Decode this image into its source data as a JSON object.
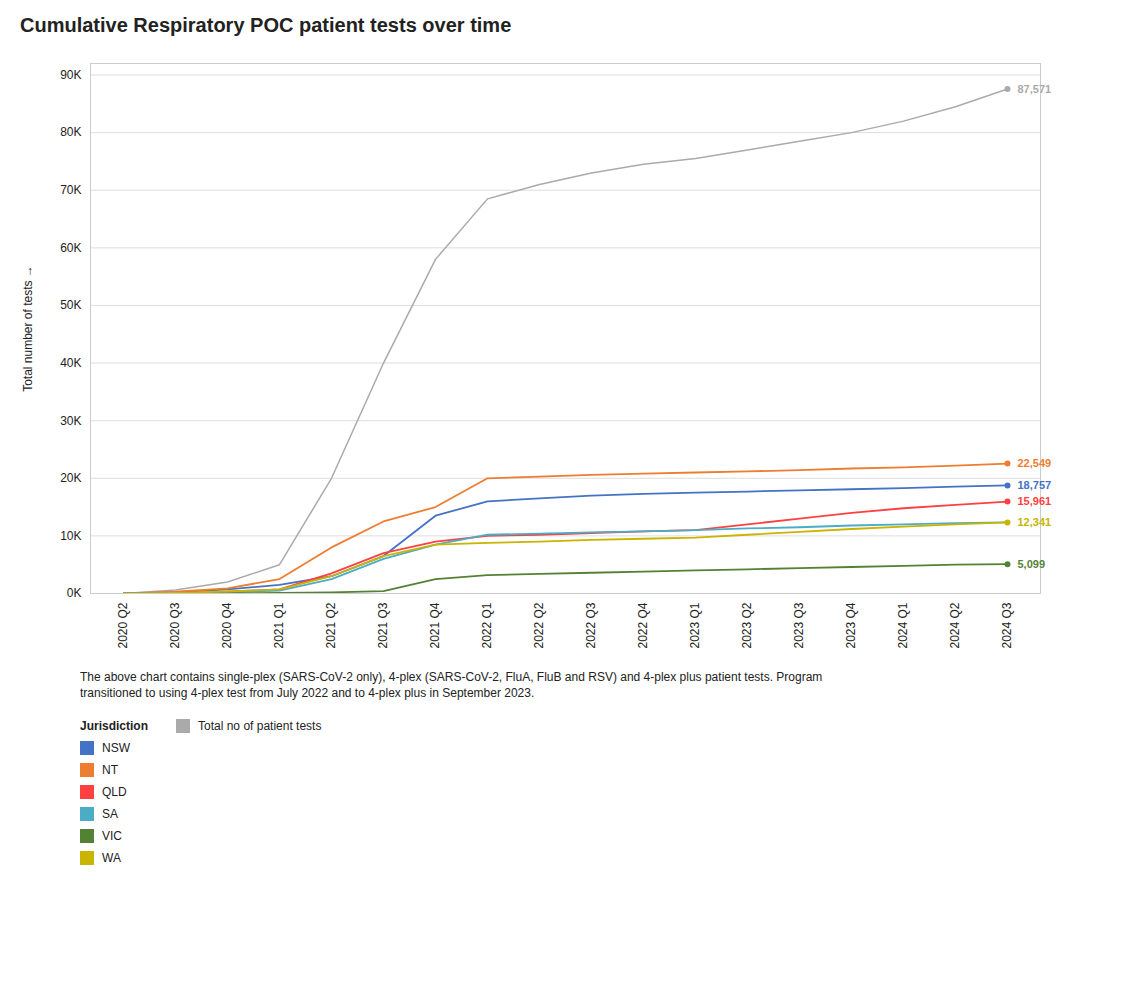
{
  "chart_data": {
    "type": "line",
    "title": "Cumulative Respiratory POC patient tests over time",
    "ylabel": "Total number of tests",
    "categories": [
      "2020 Q2",
      "2020 Q3",
      "2020 Q4",
      "2021 Q1",
      "2021 Q2",
      "2021 Q3",
      "2021 Q4",
      "2022 Q1",
      "2022 Q2",
      "2022 Q3",
      "2022 Q4",
      "2023 Q1",
      "2023 Q2",
      "2023 Q3",
      "2023 Q4",
      "2024 Q1",
      "2024 Q2",
      "2024 Q3"
    ],
    "series": [
      {
        "name": "Total no of patient tests",
        "color": "#AAAAAA",
        "values": [
          0,
          600,
          2000,
          5000,
          20000,
          40000,
          58000,
          68500,
          71000,
          73000,
          74500,
          75500,
          77000,
          78500,
          80000,
          82000,
          84500,
          87571
        ]
      },
      {
        "name": "NSW",
        "color": "#4472C4",
        "values": [
          0,
          200,
          700,
          1500,
          3000,
          6500,
          13500,
          16000,
          16500,
          17000,
          17300,
          17500,
          17700,
          17900,
          18100,
          18300,
          18550,
          18757
        ]
      },
      {
        "name": "NT",
        "color": "#ED7D31",
        "values": [
          0,
          300,
          900,
          2500,
          8000,
          12500,
          15000,
          20000,
          20300,
          20600,
          20800,
          21000,
          21200,
          21400,
          21700,
          21900,
          22200,
          22549
        ]
      },
      {
        "name": "QLD",
        "color": "#FF4040",
        "values": [
          0,
          100,
          300,
          700,
          3500,
          7000,
          9000,
          10000,
          10200,
          10500,
          10800,
          11000,
          12000,
          13000,
          14000,
          14800,
          15400,
          15961
        ]
      },
      {
        "name": "SA",
        "color": "#4BACC6",
        "values": [
          0,
          50,
          200,
          500,
          2500,
          6000,
          8500,
          10200,
          10400,
          10600,
          10800,
          11000,
          11300,
          11500,
          11800,
          12000,
          12200,
          12341
        ]
      },
      {
        "name": "VIC",
        "color": "#548235",
        "values": [
          0,
          0,
          50,
          100,
          200,
          400,
          2500,
          3200,
          3400,
          3600,
          3800,
          4000,
          4200,
          4400,
          4600,
          4800,
          5000,
          5099
        ]
      },
      {
        "name": "WA",
        "color": "#C9B400",
        "values": [
          0,
          100,
          350,
          700,
          3000,
          6500,
          8500,
          8800,
          9000,
          9300,
          9500,
          9700,
          10200,
          10700,
          11200,
          11600,
          12000,
          12341
        ]
      }
    ],
    "annotations": [
      {
        "series": "Total no of patient tests",
        "x": "2024 Q3",
        "value": 87571,
        "label": "87,571"
      },
      {
        "series": "NT",
        "x": "2024 Q3",
        "value": 22549,
        "label": "22,549"
      },
      {
        "series": "NSW",
        "x": "2024 Q3",
        "value": 18757,
        "label": "18,757"
      },
      {
        "series": "QLD",
        "x": "2024 Q3",
        "value": 15961,
        "label": "15,961"
      },
      {
        "series": "WA",
        "x": "2024 Q3",
        "value": 12341,
        "label": "12,341"
      },
      {
        "series": "VIC",
        "x": "2024 Q3",
        "value": 5099,
        "label": "5,099"
      }
    ],
    "ylim": [
      0,
      92000
    ],
    "yticks": [
      {
        "value": 0,
        "label": "0K"
      },
      {
        "value": 10000,
        "label": "10K"
      },
      {
        "value": 20000,
        "label": "20K"
      },
      {
        "value": 30000,
        "label": "30K"
      },
      {
        "value": 40000,
        "label": "40K"
      },
      {
        "value": 50000,
        "label": "50K"
      },
      {
        "value": 60000,
        "label": "60K"
      },
      {
        "value": 70000,
        "label": "70K"
      },
      {
        "value": 80000,
        "label": "80K"
      },
      {
        "value": 90000,
        "label": "90K"
      }
    ],
    "grid": true,
    "legend": "bottom",
    "legend_title": "Jurisdiction",
    "footnote": "The above chart contains single-plex (SARS-CoV-2 only), 4-plex (SARS-CoV-2, FluA, FluB and RSV) and 4-plex plus patient tests. Program\ntransitioned to using 4-plex test from July 2022 and to 4-plex plus in September 2023."
  }
}
